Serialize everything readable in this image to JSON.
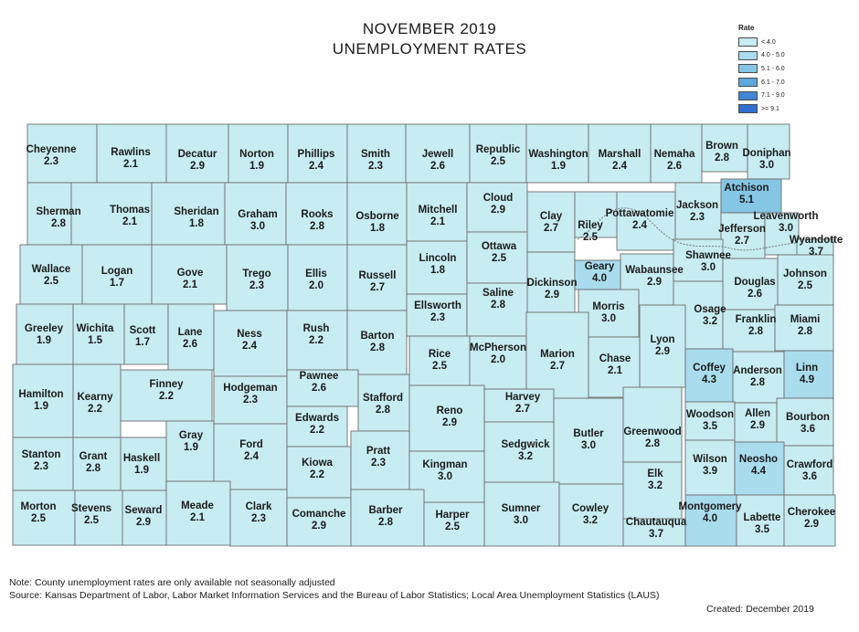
{
  "title_line1": "NOVEMBER 2019",
  "title_line2": "UNEMPLOYMENT RATES",
  "legend": {
    "title": "Rate",
    "bins": [
      {
        "label": "< 4.0",
        "color": "#c7ecf1"
      },
      {
        "label": "4.0 - 5.0",
        "color": "#a9dced"
      },
      {
        "label": "5.1 - 6.0",
        "color": "#84c6e4"
      },
      {
        "label": "6.1 - 7.0",
        "color": "#5da8dc"
      },
      {
        "label": "7.1 - 9.0",
        "color": "#3f86d6"
      },
      {
        "label": ">= 9.1",
        "color": "#2e6fd0"
      }
    ]
  },
  "counties": [
    {
      "name": "Cheyenne",
      "rate": "2.3"
    },
    {
      "name": "Rawlins",
      "rate": "2.1"
    },
    {
      "name": "Decatur",
      "rate": "2.9"
    },
    {
      "name": "Norton",
      "rate": "1.9"
    },
    {
      "name": "Phillips",
      "rate": "2.4"
    },
    {
      "name": "Smith",
      "rate": "2.3"
    },
    {
      "name": "Jewell",
      "rate": "2.6"
    },
    {
      "name": "Republic",
      "rate": "2.5"
    },
    {
      "name": "Washington",
      "rate": "1.9"
    },
    {
      "name": "Marshall",
      "rate": "2.4"
    },
    {
      "name": "Nemaha",
      "rate": "2.6"
    },
    {
      "name": "Brown",
      "rate": "2.8"
    },
    {
      "name": "Doniphan",
      "rate": "3.0"
    },
    {
      "name": "Sherman",
      "rate": "2.8"
    },
    {
      "name": "Thomas",
      "rate": "2.1"
    },
    {
      "name": "Sheridan",
      "rate": "1.8"
    },
    {
      "name": "Graham",
      "rate": "3.0"
    },
    {
      "name": "Rooks",
      "rate": "2.8"
    },
    {
      "name": "Osborne",
      "rate": "1.8"
    },
    {
      "name": "Mitchell",
      "rate": "2.1"
    },
    {
      "name": "Cloud",
      "rate": "2.9"
    },
    {
      "name": "Clay",
      "rate": "2.7"
    },
    {
      "name": "Riley",
      "rate": "2.5"
    },
    {
      "name": "Pottawatomie",
      "rate": "2.4"
    },
    {
      "name": "Jackson",
      "rate": "2.3"
    },
    {
      "name": "Atchison",
      "rate": "5.1"
    },
    {
      "name": "Jefferson",
      "rate": "2.7"
    },
    {
      "name": "Leavenworth",
      "rate": "3.0"
    },
    {
      "name": "Wyandotte",
      "rate": "3.7"
    },
    {
      "name": "Wallace",
      "rate": "2.5"
    },
    {
      "name": "Logan",
      "rate": "1.7"
    },
    {
      "name": "Gove",
      "rate": "2.1"
    },
    {
      "name": "Trego",
      "rate": "2.3"
    },
    {
      "name": "Ellis",
      "rate": "2.0"
    },
    {
      "name": "Russell",
      "rate": "2.7"
    },
    {
      "name": "Lincoln",
      "rate": "1.8"
    },
    {
      "name": "Ottawa",
      "rate": "2.5"
    },
    {
      "name": "Dickinson",
      "rate": "2.9"
    },
    {
      "name": "Geary",
      "rate": "4.0"
    },
    {
      "name": "Wabaunsee",
      "rate": "2.9"
    },
    {
      "name": "Shawnee",
      "rate": "3.0"
    },
    {
      "name": "Douglas",
      "rate": "2.6"
    },
    {
      "name": "Johnson",
      "rate": "2.5"
    },
    {
      "name": "Greeley",
      "rate": "1.9"
    },
    {
      "name": "Wichita",
      "rate": "1.5"
    },
    {
      "name": "Scott",
      "rate": "1.7"
    },
    {
      "name": "Lane",
      "rate": "2.6"
    },
    {
      "name": "Ness",
      "rate": "2.4"
    },
    {
      "name": "Rush",
      "rate": "2.2"
    },
    {
      "name": "Barton",
      "rate": "2.8"
    },
    {
      "name": "Ellsworth",
      "rate": "2.3"
    },
    {
      "name": "Saline",
      "rate": "2.8"
    },
    {
      "name": "Morris",
      "rate": "3.0"
    },
    {
      "name": "Osage",
      "rate": "3.2"
    },
    {
      "name": "Franklin",
      "rate": "2.8"
    },
    {
      "name": "Miami",
      "rate": "2.8"
    },
    {
      "name": "Hamilton",
      "rate": "1.9"
    },
    {
      "name": "Kearny",
      "rate": "2.2"
    },
    {
      "name": "Finney",
      "rate": "2.2"
    },
    {
      "name": "Hodgeman",
      "rate": "2.3"
    },
    {
      "name": "Pawnee",
      "rate": "2.6"
    },
    {
      "name": "Stafford",
      "rate": "2.8"
    },
    {
      "name": "Rice",
      "rate": "2.5"
    },
    {
      "name": "McPherson",
      "rate": "2.0"
    },
    {
      "name": "Marion",
      "rate": "2.7"
    },
    {
      "name": "Chase",
      "rate": "2.1"
    },
    {
      "name": "Lyon",
      "rate": "2.9"
    },
    {
      "name": "Coffey",
      "rate": "4.3"
    },
    {
      "name": "Anderson",
      "rate": "2.8"
    },
    {
      "name": "Linn",
      "rate": "4.9"
    },
    {
      "name": "Gray",
      "rate": "1.9"
    },
    {
      "name": "Ford",
      "rate": "2.4"
    },
    {
      "name": "Edwards",
      "rate": "2.2"
    },
    {
      "name": "Reno",
      "rate": "2.9"
    },
    {
      "name": "Harvey",
      "rate": "2.7"
    },
    {
      "name": "Butler",
      "rate": "3.0"
    },
    {
      "name": "Greenwood",
      "rate": "2.8"
    },
    {
      "name": "Woodson",
      "rate": "3.5"
    },
    {
      "name": "Allen",
      "rate": "2.9"
    },
    {
      "name": "Bourbon",
      "rate": "3.6"
    },
    {
      "name": "Stanton",
      "rate": "2.3"
    },
    {
      "name": "Grant",
      "rate": "2.8"
    },
    {
      "name": "Haskell",
      "rate": "1.9"
    },
    {
      "name": "Kiowa",
      "rate": "2.2"
    },
    {
      "name": "Pratt",
      "rate": "2.3"
    },
    {
      "name": "Kingman",
      "rate": "3.0"
    },
    {
      "name": "Sedgwick",
      "rate": "3.2"
    },
    {
      "name": "Elk",
      "rate": "3.2"
    },
    {
      "name": "Wilson",
      "rate": "3.9"
    },
    {
      "name": "Neosho",
      "rate": "4.4"
    },
    {
      "name": "Crawford",
      "rate": "3.6"
    },
    {
      "name": "Morton",
      "rate": "2.5"
    },
    {
      "name": "Stevens",
      "rate": "2.5"
    },
    {
      "name": "Seward",
      "rate": "2.9"
    },
    {
      "name": "Meade",
      "rate": "2.1"
    },
    {
      "name": "Clark",
      "rate": "2.3"
    },
    {
      "name": "Comanche",
      "rate": "2.9"
    },
    {
      "name": "Barber",
      "rate": "2.8"
    },
    {
      "name": "Harper",
      "rate": "2.5"
    },
    {
      "name": "Sumner",
      "rate": "3.0"
    },
    {
      "name": "Cowley",
      "rate": "3.2"
    },
    {
      "name": "Chautauqua",
      "rate": "3.7"
    },
    {
      "name": "Montgomery",
      "rate": "4.0"
    },
    {
      "name": "Labette",
      "rate": "3.5"
    },
    {
      "name": "Cherokee",
      "rate": "2.9"
    }
  ],
  "footnote_note": "Note: County unemployment rates are only available not seasonally adjusted",
  "footnote_source": "Source: Kansas Department of Labor, Labor Market Information Services and the Bureau of Labor Statistics; Local Area Unemployment Statistics (LAUS)",
  "footnote_created": "Created:  December 2019"
}
